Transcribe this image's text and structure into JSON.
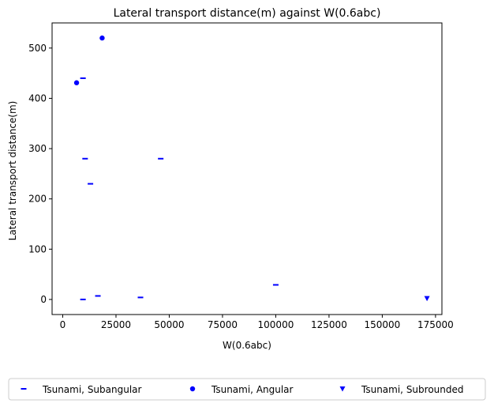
{
  "chart_data": {
    "type": "scatter",
    "title": "Lateral transport distance(m) against W(0.6abc)",
    "xlabel": "W(0.6abc)",
    "ylabel": "Lateral transport distance(m)",
    "xlim": [
      -5000,
      178000
    ],
    "ylim": [
      -30,
      550
    ],
    "xticks": [
      0,
      25000,
      50000,
      75000,
      100000,
      125000,
      150000,
      175000
    ],
    "yticks": [
      0,
      100,
      200,
      300,
      400,
      500
    ],
    "grid": false,
    "legend_position": "bottom, below plot",
    "series": [
      {
        "name": "Tsunami, Subangular",
        "marker": "dash",
        "color": "#0000ff",
        "points": [
          {
            "x": 9500,
            "y": 440
          },
          {
            "x": 10500,
            "y": 280
          },
          {
            "x": 13000,
            "y": 230
          },
          {
            "x": 46000,
            "y": 280
          },
          {
            "x": 9500,
            "y": 0
          },
          {
            "x": 16500,
            "y": 7
          },
          {
            "x": 36500,
            "y": 4
          },
          {
            "x": 100000,
            "y": 29
          }
        ]
      },
      {
        "name": "Tsunami, Angular",
        "marker": "circle",
        "color": "#0000ff",
        "points": [
          {
            "x": 6500,
            "y": 431
          },
          {
            "x": 18500,
            "y": 520
          }
        ]
      },
      {
        "name": "Tsunami, Subrounded",
        "marker": "triangle-down",
        "color": "#0000ff",
        "points": [
          {
            "x": 171000,
            "y": 2
          }
        ]
      }
    ]
  }
}
